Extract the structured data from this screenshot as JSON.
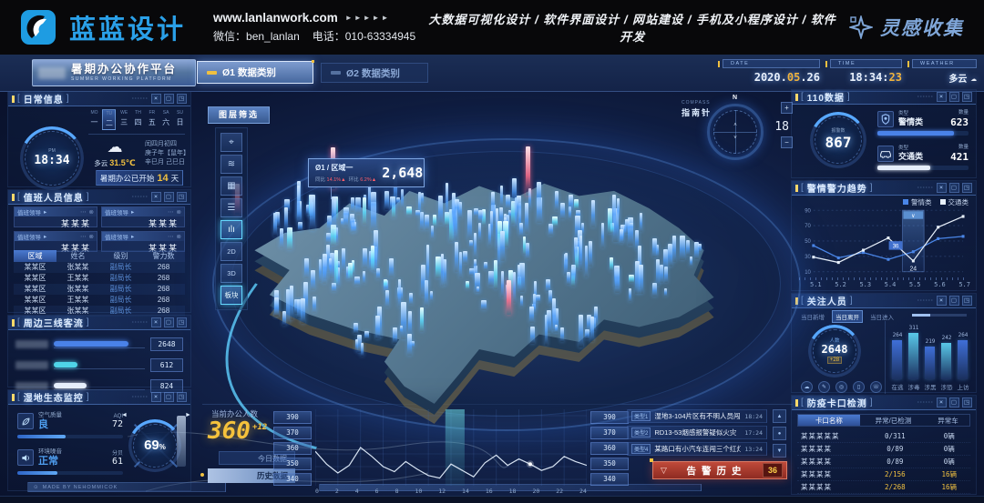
{
  "banner": {
    "logo_text": "蓝蓝设计",
    "website": "www.lanlanwork.com",
    "arrows": "►►►►►",
    "wechat": "微信：ben_lanlan",
    "phone": "电话：010-63334945",
    "services": "大数据可视化设计 / 软件界面设计 / 网站建设 / 手机及小程序设计 / 软件开发",
    "collection": "灵感收集"
  },
  "chrome": {
    "lbr": "[",
    "rbr": "]",
    "dots": "······",
    "close": "×",
    "win": "▢",
    "expand": "◳",
    "more": "⋯",
    "x2": "⊗",
    "arr": "▸"
  },
  "header": {
    "title": "暑期办公协作平台",
    "subtitle": "SUMMER WORKING PLATFORM",
    "tabs": [
      {
        "label": "Ø1 数据类别",
        "active": true
      },
      {
        "label": "Ø2 数据类别",
        "active": false
      }
    ],
    "date": {
      "label": "DATE",
      "pre": "2020.",
      "hl": "05",
      "post": ".26"
    },
    "time": {
      "label": "TIME",
      "pre": "18:34:",
      "hl": "23"
    },
    "weather": {
      "label": "WEATHER",
      "value": "多云"
    }
  },
  "daily": {
    "title": "日常信息",
    "clock_period": "PM",
    "clock_time": "18:34",
    "week": [
      {
        "en": "MO",
        "cn": "一"
      },
      {
        "en": "TU",
        "cn": "二"
      },
      {
        "en": "WE",
        "cn": "三"
      },
      {
        "en": "TH",
        "cn": "四"
      },
      {
        "en": "FR",
        "cn": "五"
      },
      {
        "en": "SA",
        "cn": "六"
      },
      {
        "en": "SU",
        "cn": "日"
      }
    ],
    "active_day": 1,
    "weather_text": "多云",
    "temperature": "31.5℃",
    "lunar": [
      "闰四月初四",
      "庚子年【鼠年】",
      "辛巳月 己巳日"
    ],
    "notice": {
      "prefix": "暑期办公已开始",
      "days": "14",
      "suffix": "天"
    }
  },
  "duty": {
    "title": "值班人员信息",
    "cards": [
      {
        "role": "值班领导",
        "name": "某某某"
      },
      {
        "role": "值班领导",
        "name": "某某某"
      },
      {
        "role": "值班领导",
        "name": "某某某"
      },
      {
        "role": "值班领导",
        "name": "某某某"
      }
    ],
    "headers": [
      "区域",
      "姓名",
      "级别",
      "警力数"
    ],
    "rows": [
      [
        "某某区",
        "张某某",
        "副局长",
        "268"
      ],
      [
        "某某区",
        "王某某",
        "副局长",
        "268"
      ],
      [
        "某某区",
        "张某某",
        "副局长",
        "268"
      ],
      [
        "某某区",
        "王某某",
        "副局长",
        "268"
      ],
      [
        "某某区",
        "张某某",
        "副局长",
        "268"
      ]
    ]
  },
  "flow": {
    "title": "周边三线客流",
    "bars": [
      {
        "value": "2648",
        "pct": 82,
        "color": "#4a82e8"
      },
      {
        "value": "612",
        "pct": 26,
        "color": "#4fd4e8"
      },
      {
        "value": "824",
        "pct": 36,
        "color": "#e6eefb"
      }
    ]
  },
  "eco": {
    "title": "湿地生态监控",
    "items": [
      {
        "icon": "leaf-icon",
        "label": "空气质量",
        "status": "良",
        "unit": "AQI",
        "num": "72",
        "pct": 46
      },
      {
        "icon": "noise-icon",
        "label": "环境噪音",
        "status": "正常",
        "unit": "分贝",
        "num": "61",
        "pct": 38
      }
    ],
    "gauge_value": "69",
    "gauge_unit": "%",
    "left_arrow": "◄",
    "right_arrow": "►",
    "footer": "MADE BY NEHOMMICOK"
  },
  "layers": {
    "title": "图层筛选",
    "buttons": [
      {
        "name": "camera-icon",
        "glyph": "⌖",
        "active": false,
        "small": false
      },
      {
        "name": "wifi-icon",
        "glyph": "≋",
        "active": false,
        "small": false
      },
      {
        "name": "grid-icon",
        "glyph": "▦",
        "active": false,
        "small": false
      },
      {
        "name": "list-icon",
        "glyph": "☰",
        "active": false,
        "small": false
      },
      {
        "name": "chart-icon",
        "glyph": "ılı",
        "active": true,
        "small": false
      },
      {
        "name": "2d-button",
        "glyph": "2D",
        "active": false,
        "small": true
      },
      {
        "name": "3d-button",
        "glyph": "3D",
        "active": false,
        "small": true
      },
      {
        "name": "module-button",
        "glyph": "板块",
        "active": true,
        "small": true
      }
    ]
  },
  "map": {
    "tooltip": {
      "title": "Ø1 / 区域一",
      "value": "2,648",
      "yoy_label": "同比",
      "yoy": "14.1%▲",
      "mom_label": "环比",
      "mom": "6.2%▲"
    },
    "compass": {
      "label": "COMPASS",
      "cn": "指南针",
      "north": "N",
      "zoom": "18",
      "plus": "+",
      "minus": "−",
      "chev_up": "˄",
      "chev_dn": "˅"
    }
  },
  "data110": {
    "title": "110数据",
    "gauge_label": "报警数",
    "gauge_value": "867",
    "items": [
      {
        "icon": "badge-icon",
        "type_label": "类型",
        "name": "警情类",
        "count_label": "数量",
        "value": "623",
        "pct": 84,
        "color": "#4a82e8"
      },
      {
        "icon": "car-icon",
        "type_label": "类型",
        "name": "交通类",
        "count_label": "数量",
        "value": "421",
        "pct": 58,
        "color": "#e6eefb"
      }
    ]
  },
  "trend": {
    "title": "警情警力趋势",
    "point_label": "24",
    "tooltip_value": "30"
  },
  "focus": {
    "title": "关注人员",
    "tabs": [
      {
        "label": "当日新增",
        "active": false
      },
      {
        "label": "当日离开",
        "active": true
      },
      {
        "label": "当日进入",
        "active": false
      }
    ],
    "gauge_label": "人数",
    "gauge_value": "2648",
    "gauge_delta": "+28",
    "mini_icons": [
      "☁",
      "✎",
      "◎",
      "▯",
      "☏"
    ]
  },
  "checkpoint": {
    "title": "防疫卡口检测",
    "headers": [
      "卡口名称",
      "异常/已检测",
      "异常车"
    ],
    "rows": [
      {
        "name": "某某某某某",
        "ratio": "0/311",
        "count": "0辆",
        "warn": false
      },
      {
        "name": "某某某某",
        "ratio": "0/89",
        "count": "0辆",
        "warn": false
      },
      {
        "name": "某某某某",
        "ratio": "0/89",
        "count": "0辆",
        "warn": false
      },
      {
        "name": "某某某某",
        "ratio": "2/156",
        "count": "16辆",
        "warn": true
      },
      {
        "name": "某某某某",
        "ratio": "2/268",
        "count": "16辆",
        "warn": true
      }
    ]
  },
  "office": {
    "label": "当前办公人数",
    "value": "360",
    "delta": "+12",
    "btn_today": "今日数据",
    "btn_history": "历史数据"
  },
  "alerts": {
    "items": [
      {
        "tag": "类型1",
        "text": "湿地3-104片区有不明人员闯入",
        "time": "18:24"
      },
      {
        "tag": "类型2",
        "text": "RD13-53烟感报警疑似火灾",
        "time": "17:24"
      },
      {
        "tag": "类型4",
        "text": "某路口有小汽车连闯三个红灯",
        "time": "13:24"
      }
    ],
    "pager": [
      "▲",
      "●",
      "▼"
    ],
    "history_label": "告警历史",
    "history_count": "36"
  },
  "chart_data": [
    {
      "id": "trend",
      "type": "line",
      "title": "警情警力趋势",
      "categories": [
        "5.1",
        "5.2",
        "5.3",
        "5.4",
        "5.5",
        "5.6",
        "5.7"
      ],
      "series": [
        {
          "name": "警情类",
          "color": "#4a86e8",
          "values": [
            44,
            28,
            35,
            26,
            36,
            53,
            56
          ]
        },
        {
          "name": "交通类",
          "color": "#e8f0fa",
          "values": [
            29,
            22,
            38,
            54,
            24,
            68,
            82
          ]
        }
      ],
      "ylim": [
        10,
        90
      ],
      "yticks": [
        90,
        70,
        50,
        30,
        10
      ],
      "highlight_index": 4,
      "point_label": "24",
      "tooltip": "30",
      "legend_position": "top-right",
      "grid": true
    },
    {
      "id": "office",
      "type": "line",
      "title": "当前办公人数趋势",
      "x_start": 0,
      "x_step": 1,
      "values": [
        362,
        352,
        345,
        351,
        365,
        358,
        350,
        346,
        354,
        348,
        343,
        341,
        352,
        347,
        342,
        353,
        359,
        351,
        356,
        352,
        347,
        350,
        358,
        354,
        351
      ],
      "yticks": [
        390,
        370,
        360,
        350,
        340
      ],
      "ylim": [
        335,
        395
      ],
      "xticks": [
        0,
        2,
        4,
        6,
        8,
        10,
        12,
        14,
        16,
        18,
        20,
        22,
        24
      ],
      "highlight_band": [
        11.5,
        13.2
      ],
      "marker_index": 19,
      "color": "#d7e3f2",
      "grid": true
    },
    {
      "id": "focus",
      "type": "bar",
      "categories": [
        "在逃",
        "涉毒",
        "涉黑",
        "涉恐",
        "上访"
      ],
      "values": [
        264,
        311,
        219,
        242,
        264
      ],
      "colors": [
        "#3f6fd8",
        "#59c8e8",
        "#3f6fd8",
        "#59c8e8",
        "#3f6fd8"
      ],
      "ylim": [
        0,
        340
      ]
    },
    {
      "id": "flow",
      "type": "bar",
      "categories": [
        "线路一",
        "线路二",
        "线路三"
      ],
      "values": [
        2648,
        612,
        824
      ]
    }
  ]
}
